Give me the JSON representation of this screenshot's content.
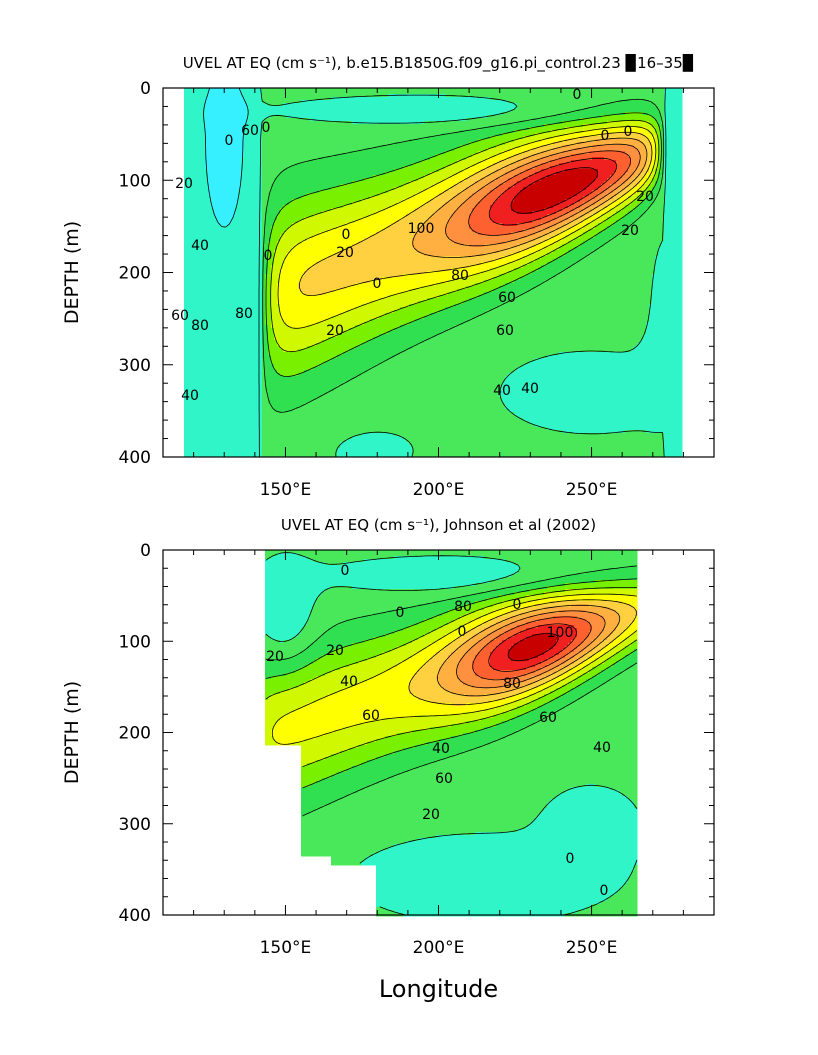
{
  "chart_data": [
    {
      "type": "heatmap",
      "title": "UVEL AT EQ (cm s⁻¹), b.e15.B1850G.f09_g16.pi_control.23 ▉16–35▉",
      "xlabel": "",
      "ylabel": "DEPTH (m)",
      "xlim": [
        110,
        290
      ],
      "ylim": [
        0,
        400
      ],
      "x_tick_labels": [
        "150°E",
        "200°E",
        "250°E"
      ],
      "y_tick_labels": [
        "0",
        "100",
        "200",
        "300",
        "400"
      ],
      "contour_interval": 10,
      "contour_labels": [
        "0",
        "0",
        "0",
        "0",
        "0",
        "0",
        "0",
        "0",
        "20",
        "20",
        "20",
        "40",
        "60",
        "80",
        "100",
        "80",
        "60",
        "60",
        "40",
        "40",
        "20",
        "20",
        "40",
        "60",
        "80"
      ],
      "core": {
        "longitude": 235,
        "depth": 110,
        "max_speed": 105
      },
      "data_extent": {
        "lon_min": 117,
        "lon_max": 280
      }
    },
    {
      "type": "heatmap",
      "title": "UVEL AT EQ (cm s⁻¹), Johnson et al (2002)",
      "xlabel": "Longitude",
      "ylabel": "DEPTH (m)",
      "xlim": [
        110,
        290
      ],
      "ylim": [
        0,
        400
      ],
      "x_tick_labels": [
        "150°E",
        "200°E",
        "250°E"
      ],
      "y_tick_labels": [
        "0",
        "100",
        "200",
        "300",
        "400"
      ],
      "contour_interval": 10,
      "contour_labels": [
        "0",
        "0",
        "0",
        "0",
        "20",
        "40",
        "60",
        "20",
        "40",
        "60",
        "80",
        "100",
        "80",
        "60",
        "40",
        "20",
        "0",
        "0"
      ],
      "core": {
        "longitude": 232,
        "depth": 100,
        "max_speed": 105
      },
      "data_extent": {
        "lon_min": 143,
        "lon_max": 265
      }
    }
  ]
}
